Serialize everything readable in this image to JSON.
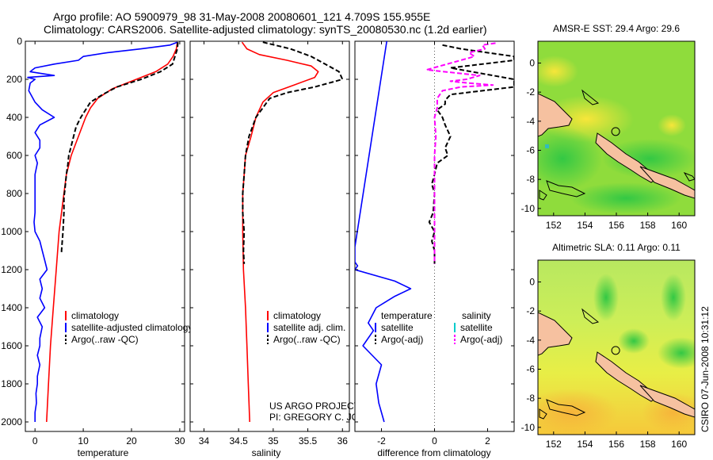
{
  "header": {
    "line1": "Argo profile: AO 5900979_98 31-May-2008 20080601_121 4.709S 155.955E",
    "line2": "Climatology: CARS2006. Satellite-adjusted climatology: synTS_20080530.nc (1.2d earlier)"
  },
  "footer": {
    "project": "US ARGO PROJECT",
    "pi": "PI: GREGORY C. JOHNSON",
    "stamp": "CSIRO 07-Jun-2008 10:31:12"
  },
  "colors": {
    "climatology": "#ff0000",
    "satellite": "#0000ff",
    "argo": "#000000",
    "satellite_salinity": "#00cccc",
    "argo_salinity_diff": "#ff00ff"
  },
  "chart_data": [
    {
      "type": "line",
      "xlabel": "temperature",
      "ylabel": "",
      "xlim": [
        -2,
        31
      ],
      "ylim": [
        2050,
        0
      ],
      "y_reversed": true,
      "xticks": [
        0,
        10,
        20,
        30
      ],
      "yticks": [
        0,
        200,
        400,
        600,
        800,
        1000,
        1200,
        1400,
        1600,
        1800,
        2000
      ],
      "legend": [
        "climatology",
        "satellite-adjusted climatology",
        "Argo(..raw -QC)"
      ],
      "legend_placement": "lower-right",
      "series": [
        {
          "name": "climatology",
          "color": "#ff0000",
          "style": "solid",
          "points": [
            [
              29.5,
              5
            ],
            [
              29.3,
              40
            ],
            [
              28.6,
              80
            ],
            [
              27.5,
              120
            ],
            [
              25,
              160
            ],
            [
              21,
              200
            ],
            [
              16,
              250
            ],
            [
              13,
              300
            ],
            [
              11.5,
              350
            ],
            [
              10.5,
              400
            ],
            [
              9,
              500
            ],
            [
              7.5,
              600
            ],
            [
              6.5,
              700
            ],
            [
              6,
              800
            ],
            [
              5,
              1000
            ],
            [
              4.4,
              1200
            ],
            [
              3.8,
              1400
            ],
            [
              3.2,
              1600
            ],
            [
              2.8,
              1800
            ],
            [
              2.4,
              2000
            ]
          ]
        },
        {
          "name": "satellite-adjusted climatology",
          "color": "#0000ff",
          "style": "solid",
          "points": [
            [
              29.5,
              5
            ],
            [
              28,
              20
            ],
            [
              22,
              40
            ],
            [
              15,
              60
            ],
            [
              10,
              80
            ],
            [
              9,
              100
            ],
            [
              4,
              120
            ],
            [
              0,
              140
            ],
            [
              -1,
              160
            ],
            [
              4,
              180
            ],
            [
              -1.5,
              190
            ],
            [
              0,
              200
            ],
            [
              -1,
              220
            ],
            [
              -1.3,
              260
            ],
            [
              0,
              320
            ],
            [
              1.5,
              360
            ],
            [
              4,
              400
            ],
            [
              1,
              440
            ],
            [
              0,
              480
            ],
            [
              1,
              520
            ],
            [
              1,
              560
            ],
            [
              0,
              600
            ],
            [
              0.5,
              640
            ],
            [
              0,
              700
            ],
            [
              0,
              800
            ],
            [
              0,
              900
            ],
            [
              -0.2,
              950
            ],
            [
              0,
              1000
            ],
            [
              1,
              1050
            ],
            [
              1.5,
              1100
            ],
            [
              2,
              1150
            ],
            [
              2.5,
              1200
            ],
            [
              1,
              1250
            ],
            [
              1.5,
              1300
            ],
            [
              1,
              1350
            ],
            [
              2,
              1400
            ],
            [
              0.5,
              1450
            ],
            [
              1.5,
              1500
            ],
            [
              1,
              1560
            ],
            [
              1,
              1600
            ],
            [
              0.5,
              1650
            ],
            [
              1,
              1700
            ],
            [
              0.5,
              1760
            ],
            [
              0.5,
              1800
            ],
            [
              0.2,
              1850
            ],
            [
              0.3,
              1900
            ],
            [
              0,
              1950
            ],
            [
              0,
              2000
            ]
          ]
        },
        {
          "name": "Argo(..raw -QC)",
          "color": "#000000",
          "style": "dashed",
          "points": [
            [
              29.6,
              5
            ],
            [
              29.5,
              40
            ],
            [
              29,
              80
            ],
            [
              28.5,
              120
            ],
            [
              26,
              160
            ],
            [
              22,
              200
            ],
            [
              17,
              240
            ],
            [
              14,
              280
            ],
            [
              11.5,
              320
            ],
            [
              10.5,
              360
            ],
            [
              9.5,
              400
            ],
            [
              8.5,
              450
            ],
            [
              8,
              500
            ],
            [
              7.5,
              550
            ],
            [
              7,
              600
            ],
            [
              6.8,
              650
            ],
            [
              6.5,
              700
            ],
            [
              6.2,
              780
            ],
            [
              6,
              820
            ],
            [
              6,
              900
            ],
            [
              5.8,
              1000
            ],
            [
              5.5,
              1100
            ],
            [
              5.5,
              1120
            ]
          ]
        }
      ]
    },
    {
      "type": "line",
      "xlabel": "salinity",
      "ylabel": "",
      "xlim": [
        33.8,
        36.1
      ],
      "ylim": [
        2050,
        0
      ],
      "y_reversed": true,
      "xticks": [
        34,
        34.5,
        35,
        35.5,
        36
      ],
      "xtick_labels": [
        "34",
        "34.5",
        "35",
        "35.5",
        "36"
      ],
      "legend": [
        "climatology",
        "satellite adj. clim.",
        "Argo(..raw -QC)"
      ],
      "legend_placement": "lower-right",
      "series": [
        {
          "name": "climatology",
          "color": "#ff0000",
          "style": "solid",
          "points": [
            [
              34.55,
              5
            ],
            [
              34.62,
              40
            ],
            [
              34.8,
              70
            ],
            [
              35.2,
              100
            ],
            [
              35.55,
              130
            ],
            [
              35.65,
              160
            ],
            [
              35.6,
              190
            ],
            [
              35.3,
              230
            ],
            [
              35.0,
              270
            ],
            [
              34.85,
              320
            ],
            [
              34.75,
              400
            ],
            [
              34.68,
              500
            ],
            [
              34.6,
              600
            ],
            [
              34.58,
              700
            ],
            [
              34.56,
              800
            ],
            [
              34.56,
              1000
            ],
            [
              34.57,
              1200
            ],
            [
              34.6,
              1400
            ],
            [
              34.62,
              1600
            ],
            [
              34.64,
              1800
            ],
            [
              34.66,
              2000
            ]
          ]
        },
        {
          "name": "Argo(..raw -QC)",
          "color": "#000000",
          "style": "dashed",
          "points": [
            [
              34.85,
              5
            ],
            [
              35.25,
              40
            ],
            [
              35.55,
              80
            ],
            [
              35.75,
              120
            ],
            [
              35.95,
              160
            ],
            [
              36.0,
              200
            ],
            [
              35.6,
              240
            ],
            [
              35.2,
              270
            ],
            [
              34.95,
              300
            ],
            [
              34.85,
              350
            ],
            [
              34.75,
              400
            ],
            [
              34.7,
              450
            ],
            [
              34.65,
              500
            ],
            [
              34.6,
              600
            ],
            [
              34.58,
              700
            ],
            [
              34.56,
              800
            ],
            [
              34.56,
              900
            ],
            [
              34.58,
              1000
            ],
            [
              34.57,
              1100
            ],
            [
              34.58,
              1170
            ]
          ]
        }
      ]
    },
    {
      "type": "line",
      "xlabel": "difference from climatology",
      "ylabel": "",
      "xlim": [
        -3,
        3
      ],
      "ylim": [
        2050,
        0
      ],
      "y_reversed": true,
      "xticks": [
        -2,
        0,
        2
      ],
      "zero_line": "dotted",
      "legend_columns": [
        {
          "title": "temperature",
          "entries": [
            "satellite",
            "Argo(-adj)"
          ]
        },
        {
          "title": "salinity",
          "entries": [
            "satellite",
            "Argo(-adj)"
          ]
        }
      ],
      "legend_placement": "lower-center",
      "series": [
        {
          "name": "temperature satellite",
          "color": "#0000ff",
          "style": "solid",
          "points": [
            [
              -1.8,
              0
            ],
            [
              -3,
              1080
            ],
            [
              -3,
              1160
            ],
            [
              -2.9,
              1180
            ],
            [
              -3,
              1200
            ],
            [
              -1.5,
              1260
            ],
            [
              -0.9,
              1300
            ],
            [
              -1.5,
              1340
            ],
            [
              -2.2,
              1400
            ],
            [
              -2.5,
              1480
            ],
            [
              -2.3,
              1520
            ],
            [
              -2.7,
              1600
            ],
            [
              -2,
              1700
            ],
            [
              -2.2,
              1800
            ],
            [
              -2.1,
              1900
            ],
            [
              -1.9,
              2000
            ]
          ]
        },
        {
          "name": "temperature Argo(-adj)",
          "color": "#000000",
          "style": "dashed",
          "points": [
            [
              0.3,
              20
            ],
            [
              1,
              40
            ],
            [
              3,
              80
            ],
            [
              3,
              100
            ],
            [
              0.6,
              140
            ],
            [
              3,
              200
            ],
            [
              3,
              240
            ],
            [
              0.6,
              280
            ],
            [
              0.4,
              310
            ],
            [
              0.4,
              330
            ],
            [
              0.1,
              360
            ],
            [
              0.3,
              400
            ],
            [
              0.4,
              440
            ],
            [
              0.6,
              500
            ],
            [
              0.4,
              560
            ],
            [
              0.5,
              600
            ],
            [
              0.1,
              640
            ],
            [
              0.0,
              700
            ],
            [
              -0.1,
              750
            ],
            [
              0.0,
              800
            ],
            [
              -0.05,
              900
            ],
            [
              -0.2,
              950
            ],
            [
              0,
              1000
            ],
            [
              -0.1,
              1050
            ],
            [
              0,
              1100
            ],
            [
              0,
              1170
            ]
          ]
        },
        {
          "name": "salinity Argo(-adj)",
          "color": "#ff00ff",
          "style": "dashed",
          "points": [
            [
              2.3,
              10
            ],
            [
              1.8,
              20
            ],
            [
              1.9,
              40
            ],
            [
              1.3,
              60
            ],
            [
              1.5,
              80
            ],
            [
              -0.3,
              150
            ],
            [
              1.7,
              180
            ],
            [
              1.2,
              200
            ],
            [
              0.6,
              210
            ],
            [
              1.3,
              220
            ],
            [
              2.2,
              230
            ],
            [
              1,
              240
            ],
            [
              0.3,
              260
            ],
            [
              0.1,
              300
            ],
            [
              0.1,
              350
            ],
            [
              0,
              400
            ],
            [
              0.05,
              500
            ],
            [
              0,
              600
            ],
            [
              0,
              700
            ],
            [
              0,
              800
            ],
            [
              0,
              900
            ],
            [
              0,
              1000
            ],
            [
              0,
              1100
            ],
            [
              0,
              1170
            ]
          ]
        }
      ]
    },
    {
      "type": "heatmap",
      "title": "AMSR-E SST: 29.4  Argo: 29.6",
      "xlim": [
        151,
        161
      ],
      "ylim": [
        -10.5,
        1.5
      ],
      "xticks": [
        152,
        154,
        156,
        158,
        160
      ],
      "yticks": [
        0,
        -2,
        -4,
        -6,
        -8,
        -10
      ],
      "marker": {
        "lon": 155.955,
        "lat": -4.709
      }
    },
    {
      "type": "heatmap",
      "title": "Altimetric SLA: 0.11  Argo: 0.11",
      "xlim": [
        151,
        161
      ],
      "ylim": [
        -10.5,
        1.5
      ],
      "xticks": [
        152,
        154,
        156,
        158,
        160
      ],
      "yticks": [
        0,
        -2,
        -4,
        -6,
        -8,
        -10
      ],
      "marker": {
        "lon": 155.955,
        "lat": -4.709
      }
    }
  ]
}
